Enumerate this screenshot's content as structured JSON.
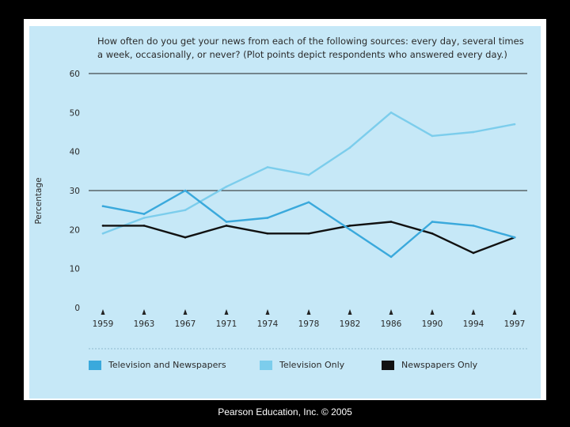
{
  "footer": {
    "copyright": "Pearson Education, Inc. © 2005"
  },
  "colors": {
    "panel_bg": "#c6e8f7",
    "tv_and_newspapers": "#3aa9dc",
    "tv_only": "#7ccdec",
    "newspapers_only": "#111111"
  },
  "chart_data": {
    "type": "line",
    "title": "How often do you get your news from each of the following sources: every day, several times a week, occasionally, or never? (Plot points depict respondents who answered every day.)",
    "title_line1": "How often do you get your news from each of the following sources: every day, several times",
    "title_line2": "a week, occasionally, or never? (Plot points depict respondents who answered every day.)",
    "xlabel": "",
    "ylabel": "Percentage",
    "ylim": [
      0,
      60
    ],
    "yticks": [
      0,
      10,
      20,
      30,
      40,
      50,
      60
    ],
    "categories": [
      "1959",
      "1963",
      "1967",
      "1971",
      "1974",
      "1978",
      "1982",
      "1986",
      "1990",
      "1994",
      "1997"
    ],
    "series": [
      {
        "name": "Television and Newspapers",
        "color": "#3aa9dc",
        "values": [
          26,
          24,
          30,
          22,
          23,
          27,
          20,
          13,
          22,
          21,
          18
        ]
      },
      {
        "name": "Television Only",
        "color": "#7ccdec",
        "values": [
          19,
          23,
          25,
          31,
          36,
          34,
          41,
          50,
          44,
          45,
          47
        ]
      },
      {
        "name": "Newspapers Only",
        "color": "#111111",
        "values": [
          21,
          21,
          18,
          21,
          19,
          19,
          21,
          22,
          19,
          14,
          18
        ]
      }
    ],
    "legend_position": "bottom"
  }
}
